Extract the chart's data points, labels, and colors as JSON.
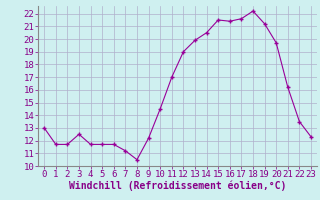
{
  "x": [
    0,
    1,
    2,
    3,
    4,
    5,
    6,
    7,
    8,
    9,
    10,
    11,
    12,
    13,
    14,
    15,
    16,
    17,
    18,
    19,
    20,
    21,
    22,
    23
  ],
  "y": [
    13.0,
    11.7,
    11.7,
    12.5,
    11.7,
    11.7,
    11.7,
    11.2,
    10.5,
    12.2,
    14.5,
    17.0,
    19.0,
    19.9,
    20.5,
    21.5,
    21.4,
    21.6,
    22.2,
    21.2,
    19.7,
    16.2,
    13.5,
    12.3
  ],
  "line_color": "#990099",
  "marker": "+",
  "marker_size": 3,
  "background_color": "#cff0f0",
  "grid_color": "#b0b0cc",
  "xlabel": "Windchill (Refroidissement éolien,°C)",
  "xlabel_color": "#880088",
  "xlabel_fontsize": 7,
  "ylabel_ticks": [
    10,
    11,
    12,
    13,
    14,
    15,
    16,
    17,
    18,
    19,
    20,
    21,
    22
  ],
  "ylim": [
    10.0,
    22.6
  ],
  "xlim": [
    -0.5,
    23.5
  ],
  "tick_color": "#880088",
  "tick_fontsize": 6.5,
  "spine_color": "#888888"
}
